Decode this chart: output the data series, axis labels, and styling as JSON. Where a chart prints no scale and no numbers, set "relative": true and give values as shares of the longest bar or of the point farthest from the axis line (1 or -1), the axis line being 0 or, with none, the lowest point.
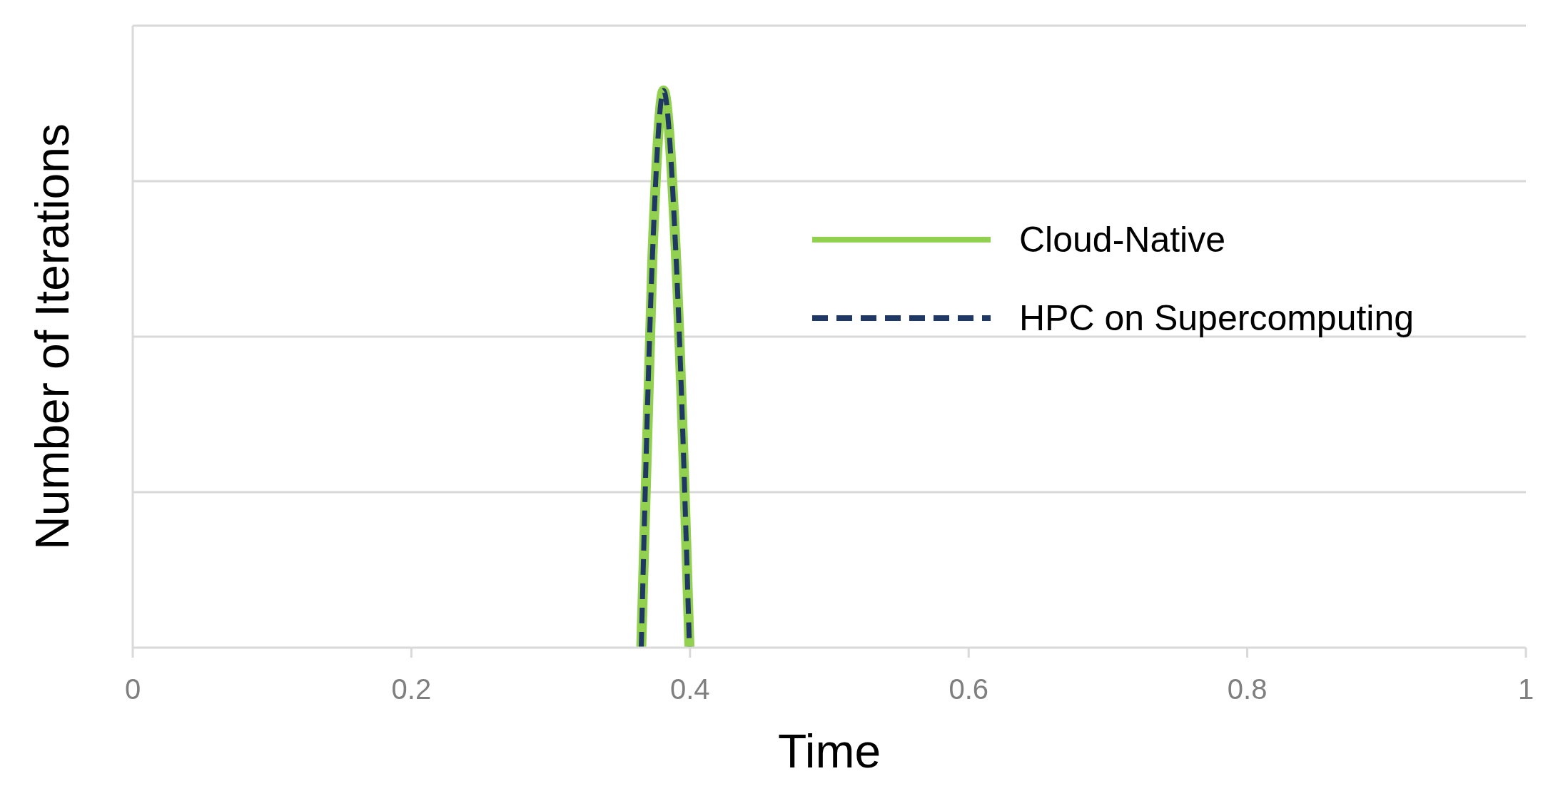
{
  "chart_data": {
    "type": "line",
    "xlabel": "Time",
    "ylabel": "Number of Iterations",
    "relative": true,
    "xlim": [
      0,
      1
    ],
    "xticks": [
      0,
      0.2,
      0.4,
      0.6,
      0.8,
      1
    ],
    "grid": "y",
    "legend": "top right",
    "series": [
      {
        "name": "Cloud-Native",
        "color": "#92d050",
        "line_style": "solid",
        "x": [
          0.365,
          0.373,
          0.381,
          0.39,
          0.3996
        ],
        "values": [
          0,
          0.7,
          1,
          0.7,
          0
        ]
      },
      {
        "name": "HPC on Supercomputing",
        "color": "#1f3864",
        "line_style": "dashed",
        "x": [
          0.365,
          0.373,
          0.381,
          0.39,
          0.3996
        ],
        "values": [
          0,
          0.7,
          1,
          0.7,
          0
        ]
      }
    ]
  }
}
